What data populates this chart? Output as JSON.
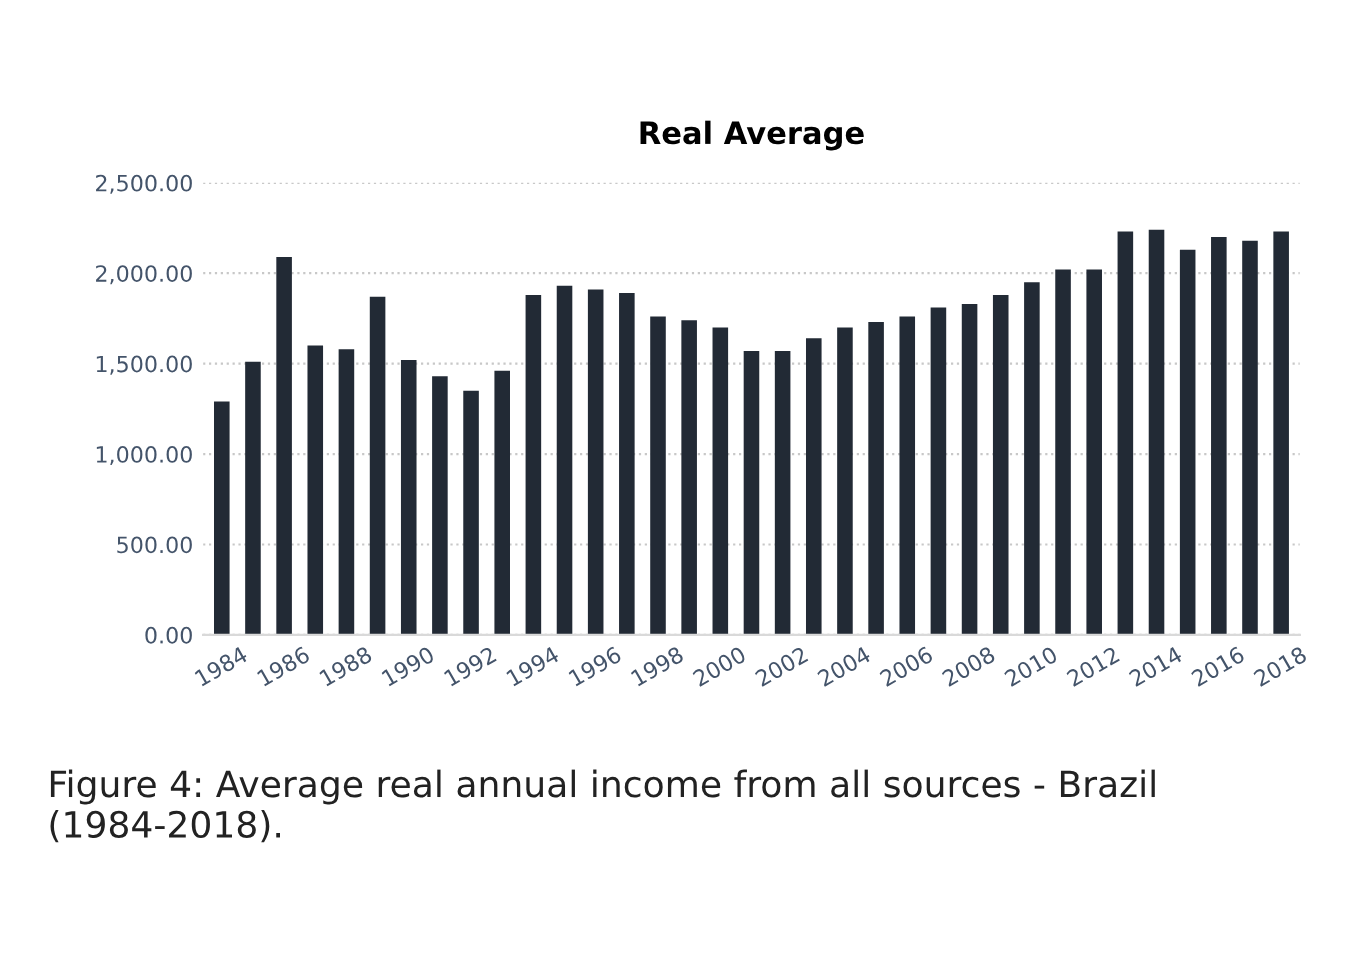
{
  "chart_data": {
    "type": "bar",
    "title": "Real Average",
    "categories": [
      "1984",
      null,
      "1986",
      null,
      "1988",
      null,
      "1990",
      null,
      "1992",
      null,
      "1994",
      null,
      "1996",
      null,
      "1998",
      null,
      "2000",
      null,
      "2002",
      null,
      "2004",
      null,
      "2006",
      null,
      "2008",
      null,
      "2010",
      null,
      "2012",
      null,
      "2014",
      null,
      "2016",
      null,
      "2018"
    ],
    "values": [
      1290,
      1510,
      2090,
      1600,
      1580,
      1870,
      1520,
      1430,
      1350,
      1460,
      1880,
      1930,
      1910,
      1890,
      1760,
      1740,
      1700,
      1570,
      1570,
      1640,
      1700,
      1730,
      1760,
      1810,
      1830,
      1880,
      1950,
      2020,
      2020,
      2230,
      2240,
      2130,
      2200,
      2180,
      2230
    ],
    "color": "#222a35",
    "ylim": [
      0,
      2500
    ],
    "yticks": [
      {
        "value": 0,
        "label": "0.00"
      },
      {
        "value": 500,
        "label": "500.00"
      },
      {
        "value": 1000,
        "label": "1,000.00"
      },
      {
        "value": 1500,
        "label": "1,500.00"
      },
      {
        "value": 2000,
        "label": "2,000.00"
      },
      {
        "value": 2500,
        "label": "2,500.00"
      }
    ],
    "grid": "y",
    "annotations": [
      "Figure 4: Average real annual income from all sources - Brazil (1984-2018)."
    ]
  }
}
